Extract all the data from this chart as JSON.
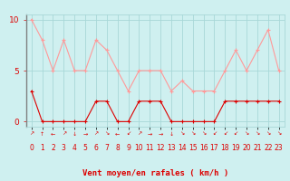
{
  "hours": [
    0,
    1,
    2,
    3,
    4,
    5,
    6,
    7,
    8,
    9,
    10,
    11,
    12,
    13,
    14,
    15,
    16,
    17,
    18,
    19,
    20,
    21,
    22,
    23
  ],
  "wind_avg": [
    3,
    0,
    0,
    0,
    0,
    0,
    2,
    2,
    0,
    0,
    2,
    2,
    2,
    0,
    0,
    0,
    0,
    0,
    2,
    2,
    2,
    2,
    2,
    2
  ],
  "wind_gust": [
    10,
    8,
    5,
    8,
    5,
    5,
    8,
    7,
    5,
    3,
    5,
    5,
    5,
    3,
    4,
    3,
    3,
    3,
    5,
    7,
    5,
    7,
    9,
    5
  ],
  "wind_dirs": [
    "↗",
    "↑",
    "←",
    "↗",
    "↓",
    "→",
    "↗",
    "↘",
    "←",
    "↙",
    "↗",
    "→",
    "→",
    "↓",
    "↘",
    "↘",
    "↘",
    "↙",
    "↙",
    "↙",
    "↘",
    "↘",
    "↘",
    "↘"
  ],
  "bg_color": "#cff0f0",
  "line_avg_color": "#dd0000",
  "line_gust_color": "#ff9999",
  "grid_color": "#a8d8d8",
  "axis_color": "#dd0000",
  "spine_color": "#808080",
  "xlabel": "Vent moyen/en rafales ( km/h )",
  "ylabel_ticks": [
    0,
    5,
    10
  ],
  "ylim": [
    -0.5,
    10.5
  ],
  "xlim": [
    -0.5,
    23.5
  ]
}
